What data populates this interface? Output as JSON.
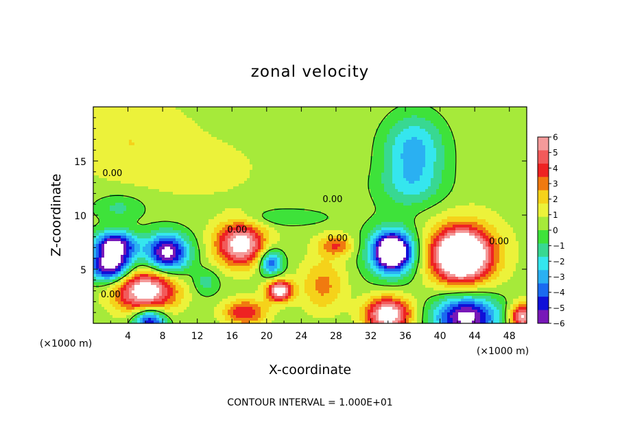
{
  "chart_data": {
    "type": "heatmap",
    "title": "zonal velocity",
    "xlabel": "X-coordinate",
    "ylabel": "Z-coordinate",
    "x_units": "(×1000 m)",
    "y_units": "(×1000 m)",
    "xlim": [
      0,
      50
    ],
    "ylim": [
      0,
      20
    ],
    "x_ticks": [
      4,
      8,
      12,
      16,
      20,
      24,
      28,
      32,
      36,
      40,
      44,
      48
    ],
    "y_ticks": [
      5,
      10,
      15
    ],
    "colorbar": {
      "ticks": [
        6,
        5,
        4,
        3,
        2,
        1,
        0,
        -1,
        -2,
        -3,
        -4,
        -5,
        -6
      ],
      "colors": [
        "#f49a9a",
        "#f25a5a",
        "#ee2222",
        "#f07a10",
        "#f5d21a",
        "#ecf23a",
        "#a6ea3a",
        "#3ee23a",
        "#38d892",
        "#35e6ee",
        "#2ab0f2",
        "#1a6af0",
        "#1010d8",
        "#7818b8"
      ]
    },
    "contour_labels": [
      {
        "text": "0.00",
        "x": 2.2,
        "z": 13.6
      },
      {
        "text": "0.00",
        "x": 27.6,
        "z": 11.2
      },
      {
        "text": "0.00",
        "x": 16.6,
        "z": 8.4
      },
      {
        "text": "0.00",
        "x": 28.2,
        "z": 7.6
      },
      {
        "text": "0.00",
        "x": 46.8,
        "z": 7.3
      },
      {
        "text": "0.00",
        "x": 2.0,
        "z": 2.4
      }
    ],
    "blobs": [
      {
        "x": 4.0,
        "z": 16.8,
        "rx": 6,
        "rz": 3,
        "v": 1
      },
      {
        "x": 12.0,
        "z": 14.0,
        "rx": 8,
        "rz": 3,
        "v": 0.5
      },
      {
        "x": 37.0,
        "z": 16.0,
        "rx": 3.6,
        "rz": 3.4,
        "v": -3.6
      },
      {
        "x": 36.5,
        "z": 12.5,
        "rx": 4,
        "rz": 2,
        "v": -1.6
      },
      {
        "x": 3.0,
        "z": 10.7,
        "rx": 3,
        "rz": 1.2,
        "v": -1.6
      },
      {
        "x": 22.0,
        "z": 9.8,
        "rx": 5,
        "rz": 0.8,
        "v": -1.4
      },
      {
        "x": 20.5,
        "z": 5.6,
        "rx": 1.3,
        "rz": 1.2,
        "v": -4.8
      },
      {
        "x": 13.0,
        "z": 3.8,
        "rx": 1.5,
        "rz": 1.2,
        "v": -1.7
      },
      {
        "x": 2.5,
        "z": 7.2,
        "rx": 2.4,
        "rz": 1.3,
        "v": -7
      },
      {
        "x": 2.0,
        "z": 5.2,
        "rx": 2.4,
        "rz": 1.4,
        "v": -7
      },
      {
        "x": 8.5,
        "z": 6.5,
        "rx": 2.5,
        "rz": 1.8,
        "v": -7
      },
      {
        "x": 6.5,
        "z": 0.2,
        "rx": 1.8,
        "rz": 1.3,
        "v": -6
      },
      {
        "x": 6.0,
        "z": 3.0,
        "rx": 3.5,
        "rz": 2.0,
        "v": 7
      },
      {
        "x": 17.0,
        "z": 7.3,
        "rx": 2.8,
        "rz": 2.0,
        "v": 6.5
      },
      {
        "x": 21.5,
        "z": 3.0,
        "rx": 1.5,
        "rz": 1.0,
        "v": 6.5
      },
      {
        "x": 17.5,
        "z": 1.0,
        "rx": 2.5,
        "rz": 1.2,
        "v": 4
      },
      {
        "x": 26.5,
        "z": 3.5,
        "rx": 2.5,
        "rz": 2.5,
        "v": 2.5
      },
      {
        "x": 28.0,
        "z": 7.2,
        "rx": 2,
        "rz": 1,
        "v": 3
      },
      {
        "x": 34.5,
        "z": 6.6,
        "rx": 2.0,
        "rz": 1.6,
        "v": -8
      },
      {
        "x": 34.5,
        "z": 6.6,
        "rx": 3.2,
        "rz": 2.6,
        "v": -3
      },
      {
        "x": 34.0,
        "z": 0.8,
        "rx": 2.6,
        "rz": 1.6,
        "v": 7
      },
      {
        "x": 42.5,
        "z": 6.3,
        "rx": 3.0,
        "rz": 2.2,
        "v": 8
      },
      {
        "x": 42.5,
        "z": 6.3,
        "rx": 4.5,
        "rz": 3.2,
        "v": 3
      },
      {
        "x": 43.0,
        "z": 0.6,
        "rx": 3.6,
        "rz": 2.0,
        "v": -7
      },
      {
        "x": 49.5,
        "z": 0.6,
        "rx": 1.5,
        "rz": 1.2,
        "v": 6
      }
    ]
  },
  "footer": {
    "contour_interval": "CONTOUR INTERVAL = 1.000E+01"
  }
}
